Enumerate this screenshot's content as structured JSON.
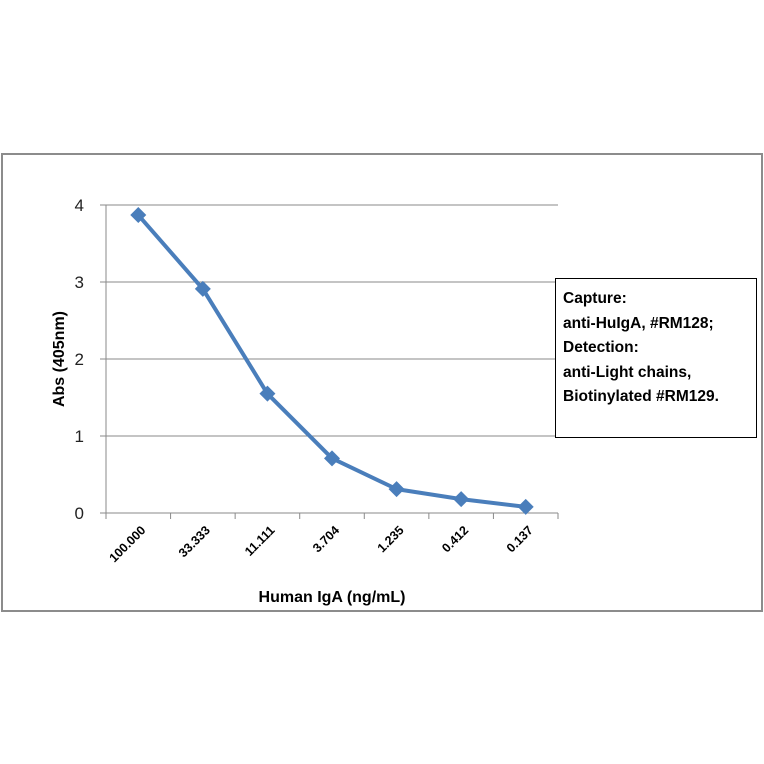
{
  "chart_data": {
    "type": "line",
    "title": "",
    "xlabel": "Human IgA (ng/mL)",
    "ylabel": "Abs (405nm)",
    "categories": [
      "100.000",
      "33.333",
      "11.111",
      "3.704",
      "1.235",
      "0.412",
      "0.137"
    ],
    "series": [
      {
        "name": "Abs (405nm)",
        "values": [
          3.87,
          2.91,
          1.55,
          0.71,
          0.31,
          0.18,
          0.08
        ],
        "color": "#4a7ebb"
      }
    ],
    "ylim": [
      0,
      4
    ],
    "yticks": [
      0,
      1,
      2,
      3,
      4
    ],
    "grid": true,
    "legend_position": "right",
    "annotation": [
      "Capture:",
      "anti-HuIgA, #RM128;",
      "Detection:",
      "anti-Light chains,",
      "Biotinylated #RM129."
    ]
  }
}
